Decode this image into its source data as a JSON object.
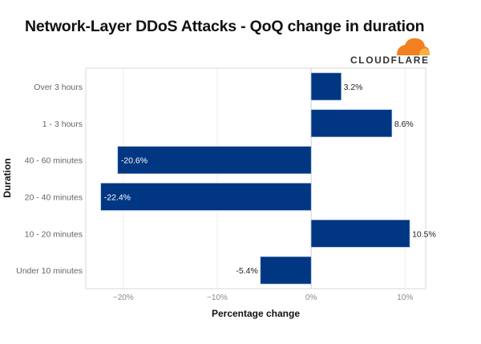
{
  "chart_data": {
    "type": "bar",
    "orientation": "horizontal",
    "title": "Network-Layer DDoS Attacks - QoQ change in duration",
    "xlabel": "Percentage change",
    "ylabel": "Duration",
    "categories": [
      "Over 3 hours",
      "1 - 3 hours",
      "40 - 60 minutes",
      "20 - 40 minutes",
      "10 - 20 minutes",
      "Under 10 minutes"
    ],
    "values": [
      3.2,
      8.6,
      -20.6,
      -22.4,
      10.5,
      -5.4
    ],
    "data_labels": [
      "3.2%",
      "8.6%",
      "-20.6%",
      "-22.4%",
      "10.5%",
      "-5.4%"
    ],
    "xlim": [
      -24,
      12.2
    ],
    "xticks": [
      -20,
      -10,
      0,
      10
    ],
    "xtick_labels": [
      "−20%",
      "−10%",
      "0%",
      "10%"
    ],
    "grid": true,
    "bar_color": "#003682",
    "logo": "CLOUDFLARE",
    "logo_color": "#f38020"
  }
}
